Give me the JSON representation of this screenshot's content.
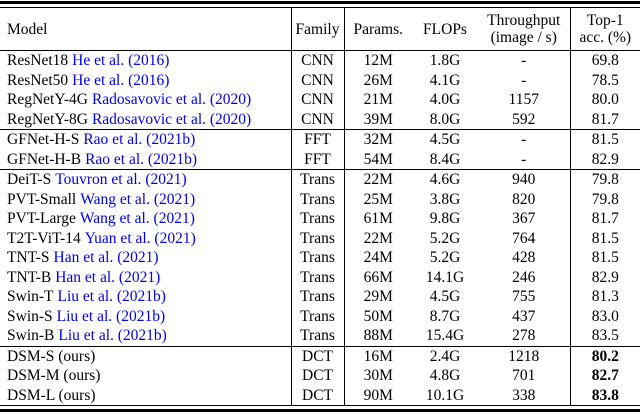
{
  "header": {
    "model": "Model",
    "family": "Family",
    "params": "Params.",
    "flops": "FLOPs",
    "throughput": [
      "Throughput",
      "(image / s)"
    ],
    "top1": [
      "Top-1",
      "acc. (%)"
    ]
  },
  "rows": [
    {
      "model": "ResNet18",
      "cite": "He et al. (2016)",
      "family": "CNN",
      "params": "12M",
      "flops": "1.8G",
      "throughput": "-",
      "top1": "69.8",
      "top1_bold": false,
      "group_start": false
    },
    {
      "model": "ResNet50",
      "cite": "He et al. (2016)",
      "family": "CNN",
      "params": "26M",
      "flops": "4.1G",
      "throughput": "-",
      "top1": "78.5",
      "top1_bold": false,
      "group_start": false
    },
    {
      "model": "RegNetY-4G",
      "cite": "Radosavovic et al. (2020)",
      "family": "CNN",
      "params": "21M",
      "flops": "4.0G",
      "throughput": "1157",
      "top1": "80.0",
      "top1_bold": false,
      "group_start": false
    },
    {
      "model": "RegNetY-8G",
      "cite": "Radosavovic et al. (2020)",
      "family": "CNN",
      "params": "39M",
      "flops": "8.0G",
      "throughput": "592",
      "top1": "81.7",
      "top1_bold": false,
      "group_start": false
    },
    {
      "model": "GFNet-H-S",
      "cite": "Rao et al. (2021b)",
      "family": "FFT",
      "params": "32M",
      "flops": "4.5G",
      "throughput": "-",
      "top1": "81.5",
      "top1_bold": false,
      "group_start": true
    },
    {
      "model": "GFNet-H-B",
      "cite": "Rao et al. (2021b)",
      "family": "FFT",
      "params": "54M",
      "flops": "8.4G",
      "throughput": "-",
      "top1": "82.9",
      "top1_bold": false,
      "group_start": false
    },
    {
      "model": "DeiT-S",
      "cite": "Touvron et al. (2021)",
      "family": "Trans",
      "params": "22M",
      "flops": "4.6G",
      "throughput": "940",
      "top1": "79.8",
      "top1_bold": false,
      "group_start": true
    },
    {
      "model": "PVT-Small",
      "cite": "Wang et al. (2021)",
      "family": "Trans",
      "params": "25M",
      "flops": "3.8G",
      "throughput": "820",
      "top1": "79.8",
      "top1_bold": false,
      "group_start": false
    },
    {
      "model": "PVT-Large",
      "cite": "Wang et al. (2021)",
      "family": "Trans",
      "params": "61M",
      "flops": "9.8G",
      "throughput": "367",
      "top1": "81.7",
      "top1_bold": false,
      "group_start": false
    },
    {
      "model": "T2T-ViT-14",
      "cite": "Yuan et al. (2021)",
      "family": "Trans",
      "params": "22M",
      "flops": "5.2G",
      "throughput": "764",
      "top1": "81.5",
      "top1_bold": false,
      "group_start": false
    },
    {
      "model": "TNT-S",
      "cite": "Han et al. (2021)",
      "family": "Trans",
      "params": "24M",
      "flops": "5.2G",
      "throughput": "428",
      "top1": "81.5",
      "top1_bold": false,
      "group_start": false
    },
    {
      "model": "TNT-B",
      "cite": "Han et al. (2021)",
      "family": "Trans",
      "params": "66M",
      "flops": "14.1G",
      "throughput": "246",
      "top1": "82.9",
      "top1_bold": false,
      "group_start": false
    },
    {
      "model": "Swin-T",
      "cite": "Liu et al. (2021b)",
      "family": "Trans",
      "params": "29M",
      "flops": "4.5G",
      "throughput": "755",
      "top1": "81.3",
      "top1_bold": false,
      "group_start": false
    },
    {
      "model": "Swin-S",
      "cite": "Liu et al. (2021b)",
      "family": "Trans",
      "params": "50M",
      "flops": "8.7G",
      "throughput": "437",
      "top1": "83.0",
      "top1_bold": false,
      "group_start": false
    },
    {
      "model": "Swin-B",
      "cite": "Liu et al. (2021b)",
      "family": "Trans",
      "params": "88M",
      "flops": "15.4G",
      "throughput": "278",
      "top1": "83.5",
      "top1_bold": false,
      "group_start": false
    },
    {
      "model": "DSM-S (ours)",
      "cite": "",
      "family": "DCT",
      "params": "16M",
      "flops": "2.4G",
      "throughput": "1218",
      "top1": "80.2",
      "top1_bold": true,
      "group_start": true
    },
    {
      "model": "DSM-M (ours)",
      "cite": "",
      "family": "DCT",
      "params": "30M",
      "flops": "4.8G",
      "throughput": "701",
      "top1": "82.7",
      "top1_bold": true,
      "group_start": false
    },
    {
      "model": "DSM-L (ours)",
      "cite": "",
      "family": "DCT",
      "params": "90M",
      "flops": "10.1G",
      "throughput": "338",
      "top1": "83.8",
      "top1_bold": true,
      "group_start": false
    }
  ],
  "colors": {
    "citation": "#0000EE",
    "text": "#000000",
    "rule": "#000000",
    "background": "#ffffff"
  }
}
